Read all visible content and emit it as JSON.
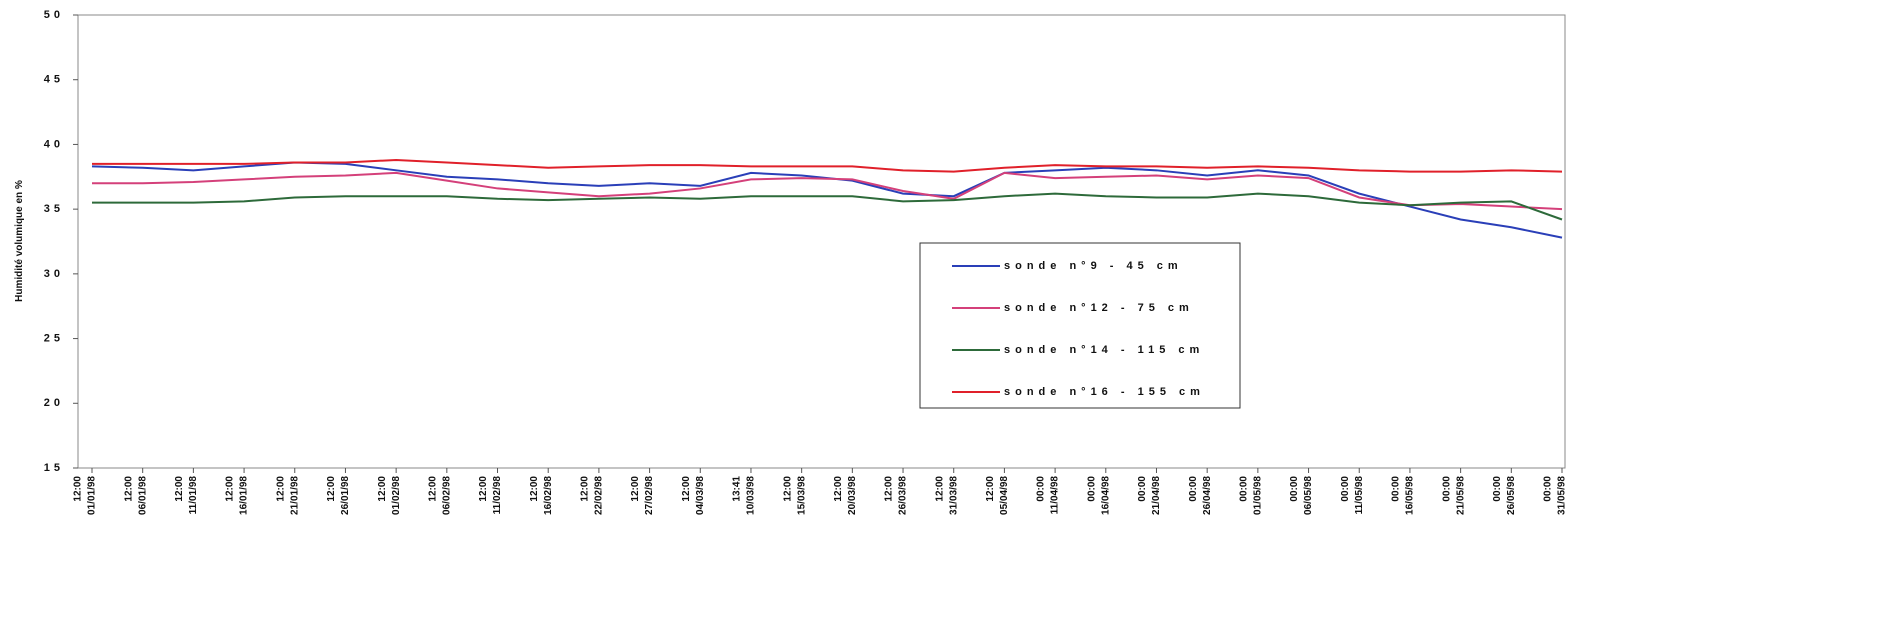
{
  "chart_data": {
    "type": "line",
    "y_label": "Humidité volumique en %",
    "categories": [
      "01/01/98",
      "06/01/98",
      "11/01/98",
      "16/01/98",
      "21/01/98",
      "26/01/98",
      "01/02/98",
      "06/02/98",
      "11/02/98",
      "16/02/98",
      "22/02/98",
      "27/02/98",
      "04/03/98",
      "10/03/98",
      "15/03/98",
      "20/03/98",
      "26/03/98",
      "31/03/98",
      "05/04/98",
      "11/04/98",
      "16/04/98",
      "21/04/98",
      "26/04/98",
      "01/05/98",
      "06/05/98",
      "11/05/98",
      "16/05/98",
      "21/05/98",
      "26/05/98",
      "31/05/98"
    ],
    "category_times": [
      "12:00",
      "12:00",
      "12:00",
      "12:00",
      "12:00",
      "12:00",
      "12:00",
      "12:00",
      "12:00",
      "12:00",
      "12:00",
      "12:00",
      "12:00",
      "13:41",
      "12:00",
      "12:00",
      "12:00",
      "12:00",
      "12:00",
      "00:00",
      "00:00",
      "00:00",
      "00:00",
      "00:00",
      "00:00",
      "00:00",
      "00:00",
      "00:00",
      "00:00",
      "00:00"
    ],
    "ylim": [
      15,
      50
    ],
    "yticks": [
      15,
      20,
      25,
      30,
      35,
      40,
      45,
      50
    ],
    "series": [
      {
        "name": "sonde n°9 - 45 cm",
        "color": "#2a3fb8",
        "values": [
          38.3,
          38.2,
          38.0,
          38.3,
          38.6,
          38.5,
          38.0,
          37.5,
          37.3,
          37.0,
          36.8,
          37.0,
          36.8,
          37.8,
          37.6,
          37.2,
          36.2,
          36.0,
          37.8,
          38.0,
          38.2,
          38.0,
          37.6,
          38.0,
          37.6,
          36.2,
          35.2,
          34.2,
          33.6,
          32.8
        ]
      },
      {
        "name": "sonde n°12 - 75 cm",
        "color": "#d4407a",
        "values": [
          37.0,
          37.0,
          37.1,
          37.3,
          37.5,
          37.6,
          37.8,
          37.2,
          36.6,
          36.3,
          36.0,
          36.2,
          36.6,
          37.3,
          37.4,
          37.3,
          36.4,
          35.8,
          37.8,
          37.4,
          37.5,
          37.6,
          37.3,
          37.6,
          37.4,
          35.9,
          35.3,
          35.4,
          35.2,
          35.0
        ]
      },
      {
        "name": "sonde n°14 - 115 cm",
        "color": "#2d6a3a",
        "values": [
          35.5,
          35.5,
          35.5,
          35.6,
          35.9,
          36.0,
          36.0,
          36.0,
          35.8,
          35.7,
          35.8,
          35.9,
          35.8,
          36.0,
          36.0,
          36.0,
          35.6,
          35.7,
          36.0,
          36.2,
          36.0,
          35.9,
          35.9,
          36.2,
          36.0,
          35.5,
          35.3,
          35.5,
          35.6,
          34.2
        ]
      },
      {
        "name": "sonde n°16 - 155 cm",
        "color": "#e0202a",
        "values": [
          38.5,
          38.5,
          38.5,
          38.5,
          38.6,
          38.6,
          38.8,
          38.6,
          38.4,
          38.2,
          38.3,
          38.4,
          38.4,
          38.3,
          38.3,
          38.3,
          38.0,
          37.9,
          38.2,
          38.4,
          38.3,
          38.3,
          38.2,
          38.3,
          38.2,
          38.0,
          37.9,
          37.9,
          38.0,
          37.9
        ]
      }
    ]
  }
}
